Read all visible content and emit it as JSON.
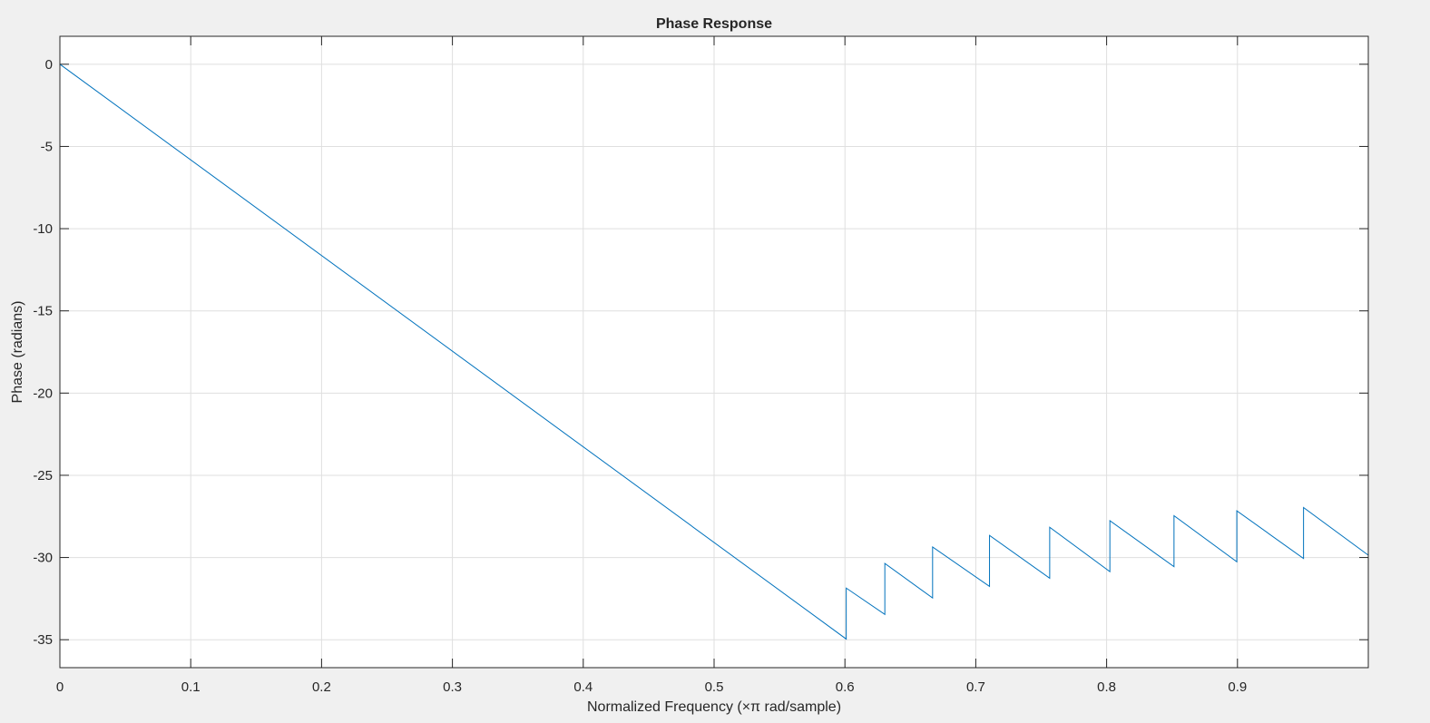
{
  "chart_data": {
    "type": "line",
    "title": "Phase Response",
    "xlabel": "Normalized Frequency (×π rad/sample)",
    "ylabel": "Phase (radians)",
    "xlim": [
      0,
      1
    ],
    "ylim": [
      -36.7,
      1.7
    ],
    "x_ticks": [
      0,
      0.1,
      0.2,
      0.3,
      0.4,
      0.5,
      0.6,
      0.7,
      0.8,
      0.9
    ],
    "x_tick_labels": [
      "0",
      "0.1",
      "0.2",
      "0.3",
      "0.4",
      "0.5",
      "0.6",
      "0.7",
      "0.8",
      "0.9"
    ],
    "y_ticks": [
      0,
      -5,
      -10,
      -15,
      -20,
      -25,
      -30,
      -35
    ],
    "y_tick_labels": [
      "0",
      "-5",
      "-10",
      "-15",
      "-20",
      "-25",
      "-30",
      "-35"
    ],
    "grid": true,
    "line_color": "#0072bd",
    "series": [
      {
        "x": [
          0,
          0.601,
          0.601,
          0.6305,
          0.6305,
          0.667,
          0.667,
          0.7105,
          0.7105,
          0.7565,
          0.7565,
          0.8025,
          0.8025,
          0.8515,
          0.8515,
          0.8995,
          0.8995,
          0.9505,
          0.9505,
          1.0
        ],
        "y": [
          0,
          -34.96,
          -31.86,
          -33.46,
          -30.36,
          -32.46,
          -29.36,
          -31.76,
          -28.66,
          -31.26,
          -28.16,
          -30.86,
          -27.76,
          -30.56,
          -27.46,
          -30.26,
          -27.16,
          -30.06,
          -26.96,
          -29.86
        ]
      }
    ]
  }
}
